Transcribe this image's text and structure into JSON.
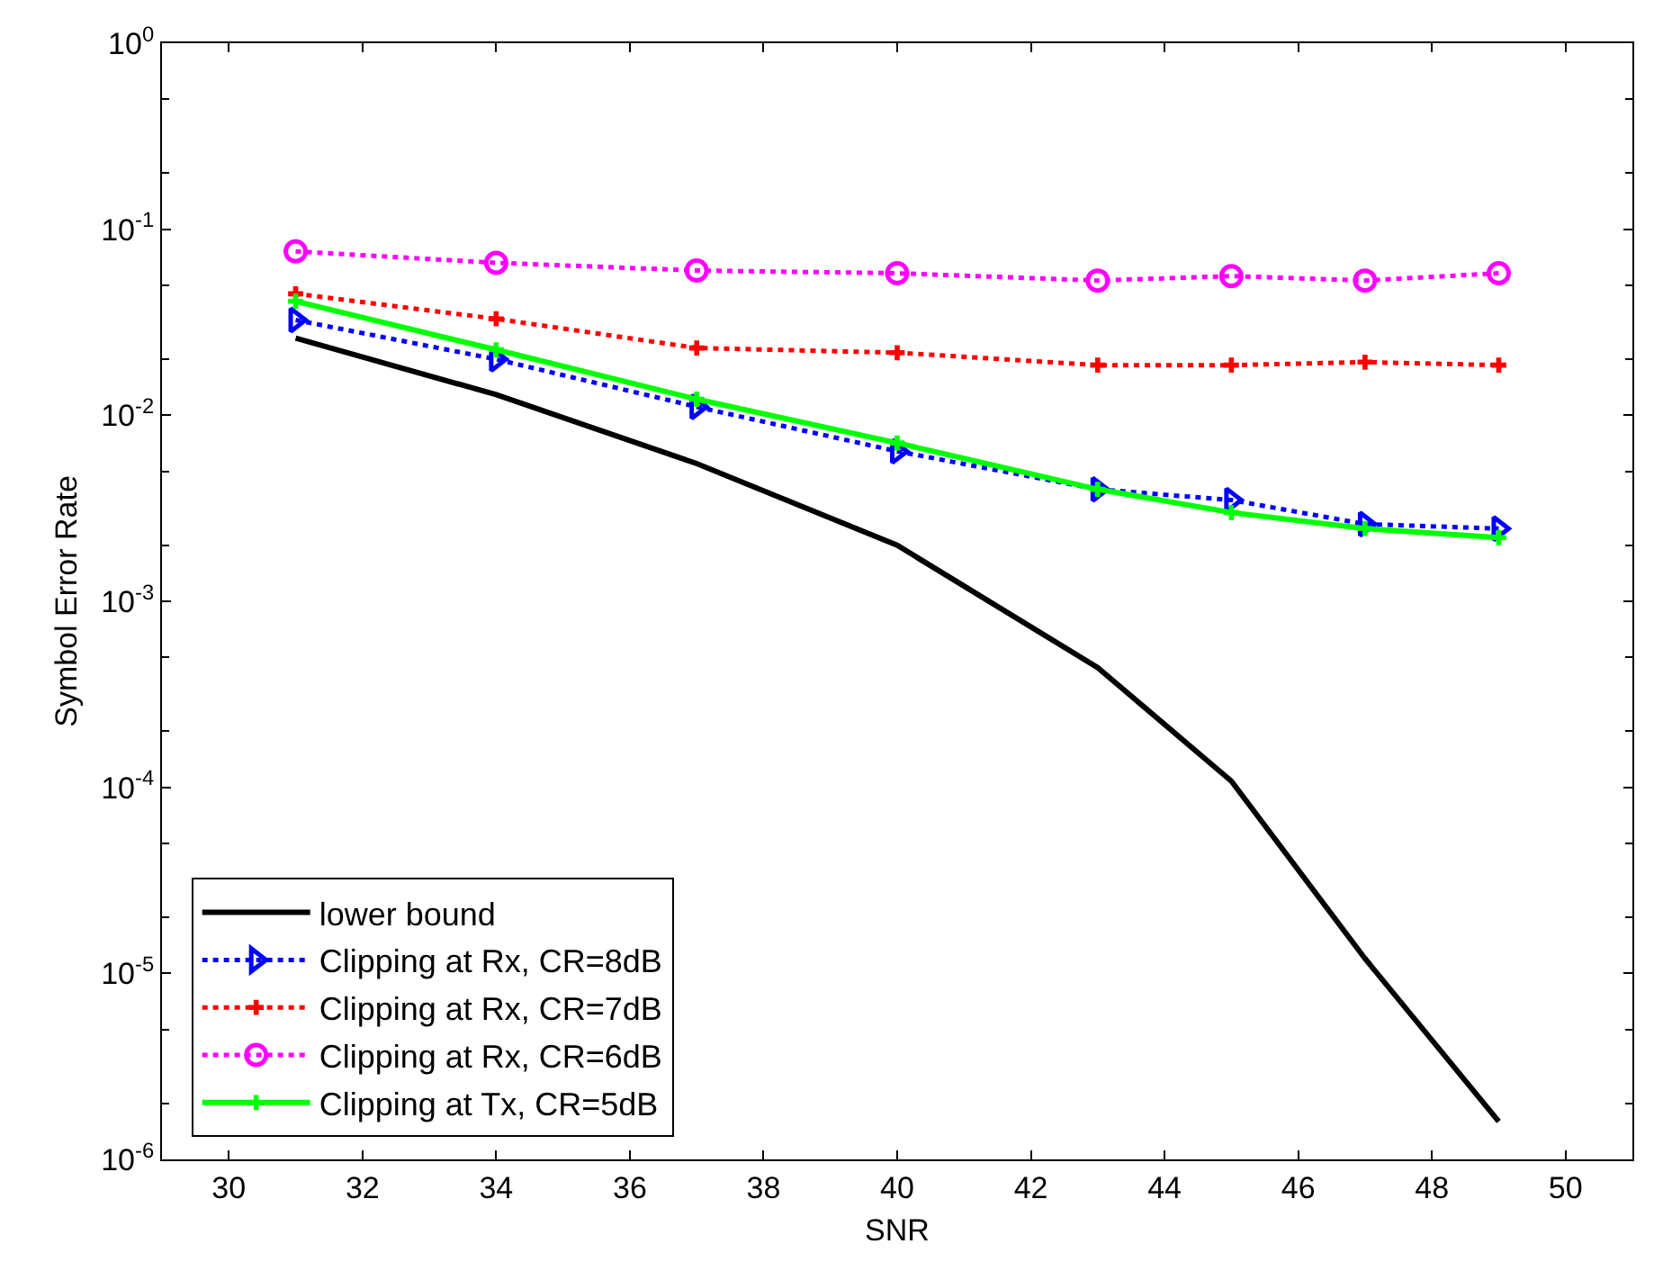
{
  "chart_data": {
    "type": "line",
    "xlabel": "SNR",
    "ylabel": "Symbol Error Rate",
    "log": "y",
    "grid": false,
    "legend": "bottom left",
    "x": [
      31,
      34,
      37,
      40,
      43,
      45,
      47,
      49
    ],
    "xlim": [
      29,
      51
    ],
    "xticks": [
      30,
      32,
      34,
      36,
      38,
      40,
      42,
      44,
      46,
      48,
      50
    ],
    "ylim": [
      1e-06,
      1
    ],
    "yticks": [
      {
        "value": 1e-06,
        "label": "10$^{-6}$"
      },
      {
        "value": 1e-05,
        "label": "10$^{-5}$"
      },
      {
        "value": 0.0001,
        "label": "10$^{-4}$"
      },
      {
        "value": 0.001,
        "label": "10$^{-3}$"
      },
      {
        "value": 0.01,
        "label": "10$^{-2}$"
      },
      {
        "value": 0.1,
        "label": "10$^{-1}$"
      },
      {
        "value": 1,
        "label": "10$^{0}$"
      }
    ],
    "series": [
      {
        "name": "lower bound",
        "color": "#000000",
        "line_style": "solid",
        "marker": "none",
        "values": [
          0.026,
          0.0129,
          0.0055,
          0.002,
          0.00044,
          0.000108,
          1.2e-05,
          1.6e-06
        ]
      },
      {
        "name": "Clipping at Rx, CR=8dB",
        "color": "#0000ff",
        "line_style": "dotted",
        "marker": "triangle",
        "values": [
          0.0325,
          0.02,
          0.0111,
          0.0064,
          0.004,
          0.0035,
          0.0026,
          0.00246
        ]
      },
      {
        "name": "Clipping at Rx, CR=7dB",
        "color": "#ff0000",
        "line_style": "dotted",
        "marker": "cross",
        "values": [
          0.045,
          0.033,
          0.023,
          0.0217,
          0.0186,
          0.0186,
          0.0193,
          0.0186
        ]
      },
      {
        "name": "Clipping at Rx, CR=6dB",
        "color": "#ff00ff",
        "line_style": "dotted",
        "marker": "circle",
        "values": [
          0.076,
          0.066,
          0.06,
          0.058,
          0.053,
          0.056,
          0.053,
          0.058
        ]
      },
      {
        "name": "Clipping at Tx, CR=5dB",
        "color": "#00ff00",
        "line_style": "solid",
        "marker": "cross",
        "values": [
          0.041,
          0.0225,
          0.0122,
          0.0071,
          0.004,
          0.003,
          0.00246,
          0.0022
        ]
      }
    ]
  }
}
